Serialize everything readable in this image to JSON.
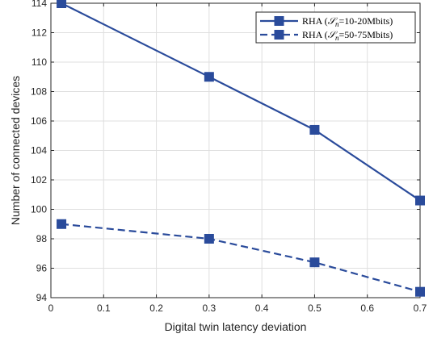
{
  "chart_data": {
    "type": "line",
    "xlabel": "Digital twin latency deviation",
    "ylabel": "Number of connected devices",
    "xlim": [
      0,
      0.7
    ],
    "ylim": [
      94,
      114
    ],
    "xticks": [
      "0",
      "0.1",
      "0.2",
      "0.3",
      "0.4",
      "0.5",
      "0.6",
      "0.7"
    ],
    "yticks": [
      "94",
      "96",
      "98",
      "100",
      "102",
      "104",
      "106",
      "108",
      "110",
      "112",
      "114"
    ],
    "grid": true,
    "legend_position": "top-right",
    "series": [
      {
        "name": "RHA (𝒮n=10-20Mbits)",
        "name_prefix": "RHA (",
        "name_symbol": "𝒮",
        "name_sub": "n",
        "name_suffix": "=10-20Mbits)",
        "line_style": "solid",
        "marker": "square",
        "color": "#2a4b9b",
        "x": [
          0.02,
          0.3,
          0.5,
          0.7
        ],
        "y": [
          114,
          109,
          105.4,
          100.6
        ]
      },
      {
        "name": "RHA (𝒮n=50-75Mbits)",
        "name_prefix": "RHA (",
        "name_symbol": "𝒮",
        "name_sub": "n",
        "name_suffix": "=50-75Mbits)",
        "line_style": "dashed",
        "marker": "square",
        "color": "#2a4b9b",
        "x": [
          0.02,
          0.3,
          0.5,
          0.7
        ],
        "y": [
          99,
          98,
          96.4,
          94.4
        ]
      }
    ]
  }
}
